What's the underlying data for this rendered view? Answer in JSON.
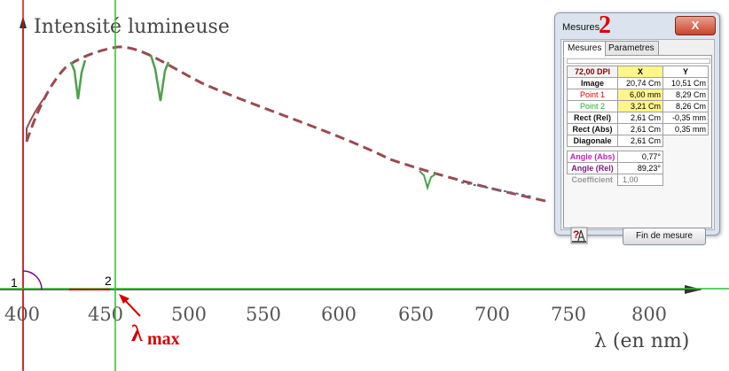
{
  "graph": {
    "y_title": "Intensité lumineuse",
    "x_title": "λ (en nm)",
    "x_ticks": [
      "400",
      "450",
      "500",
      "550",
      "600",
      "650",
      "700",
      "750",
      "800"
    ],
    "marker_1": "1",
    "marker_2": "2",
    "lambda_symbol": "λ",
    "lambda_sub": "max",
    "colors": {
      "red_line": "#d01010",
      "green_line": "#2fbf2f",
      "curve": "#9a4a52"
    }
  },
  "dialog": {
    "title": "Mesures",
    "number": "2",
    "close": "X",
    "tabs": [
      "Mesures",
      "Parametres"
    ],
    "header": {
      "label": "72,00 DPI",
      "x": "X",
      "y": "Y"
    },
    "rows": [
      {
        "label": "Image",
        "x": "20,74 Cm",
        "y": "10,51 Cm"
      },
      {
        "label": "Point 1",
        "x": "6,00 mm",
        "y": "8,29 Cm"
      },
      {
        "label": "Point 2",
        "x": "3,21 Cm",
        "y": "8,26 Cm"
      },
      {
        "label": "Rect (Rel)",
        "x": "2,61 Cm",
        "y": "-0,35 mm"
      },
      {
        "label": "Rect (Abs)",
        "x": "2,61 Cm",
        "y": "0,35 mm"
      },
      {
        "label": "Diagonale",
        "x": "2,61 Cm"
      }
    ],
    "angle_abs": {
      "label": "Angle (Abs)",
      "value": "0,77°"
    },
    "angle_rel": {
      "label": "Angle (Rel)",
      "value": "89,23°"
    },
    "coefficient": {
      "label": "Coefficient",
      "placeholder": "1,00"
    },
    "finish": "Fin de mesure",
    "help_icon": "help-calculator-icon"
  }
}
